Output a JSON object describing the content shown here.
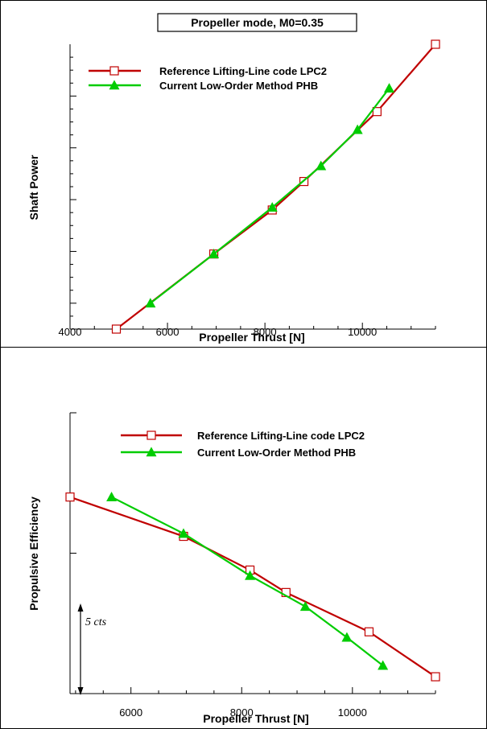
{
  "colors": {
    "reference": "#c00000",
    "current": "#00cc00",
    "axis": "#000000"
  },
  "chart_data": [
    {
      "type": "line",
      "title": "Propeller mode, M0=0.35",
      "xlabel": "Propeller Thrust [N]",
      "ylabel": "Shaft Power",
      "xlim": [
        4000,
        11500
      ],
      "ylim": [
        0,
        11
      ],
      "xticks": [
        "4000",
        "6000",
        "8000",
        "10000"
      ],
      "xtick_values": [
        4000,
        6000,
        8000,
        10000
      ],
      "y_tick_labels_shown": false,
      "legend": {
        "placement": "top-left"
      },
      "series": [
        {
          "name": "Reference Lifting-Line code LPC2",
          "marker": "square-open",
          "x": [
            4950,
            6950,
            8150,
            8800,
            10300,
            11500
          ],
          "y": [
            0.0,
            2.9,
            4.6,
            5.7,
            8.4,
            11.0
          ]
        },
        {
          "name": "Current Low-Order Method PHB",
          "marker": "triangle-filled",
          "x": [
            5650,
            6950,
            8150,
            9150,
            9900,
            10550
          ],
          "y": [
            1.0,
            2.9,
            4.7,
            6.3,
            7.7,
            9.3
          ]
        }
      ]
    },
    {
      "type": "line",
      "title": "",
      "xlabel": "Propeller Thrust [N]",
      "ylabel": "Propulsive Efficiency",
      "xlim": [
        4900,
        11500
      ],
      "ylim": [
        0,
        10
      ],
      "xticks": [
        "6000",
        "8000",
        "10000"
      ],
      "xtick_values": [
        6000,
        8000,
        10000
      ],
      "y_tick_labels_shown": false,
      "legend": {
        "placement": "top-right"
      },
      "annotation": {
        "text": "5 cts",
        "span": [
          0,
          5
        ]
      },
      "series": [
        {
          "name": "Reference Lifting-Line code LPC2",
          "marker": "square-open",
          "x": [
            4900,
            6950,
            8150,
            8800,
            10300,
            11500
          ],
          "y": [
            7.0,
            5.6,
            4.4,
            3.6,
            2.2,
            0.6
          ]
        },
        {
          "name": "Current Low-Order Method PHB",
          "marker": "triangle-filled",
          "x": [
            5650,
            6950,
            8150,
            9150,
            9900,
            10550
          ],
          "y": [
            7.0,
            5.7,
            4.2,
            3.1,
            2.0,
            1.0
          ]
        }
      ]
    }
  ]
}
